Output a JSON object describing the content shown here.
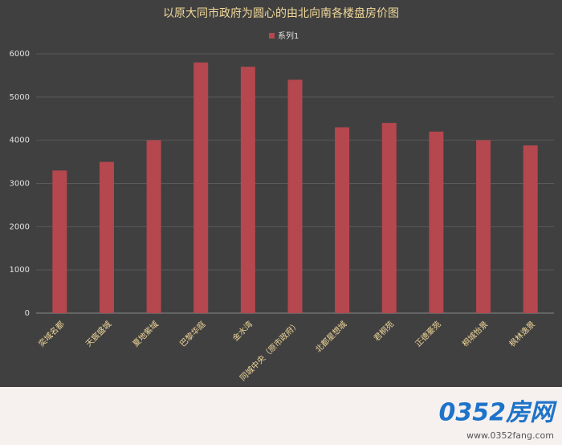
{
  "chart_data": {
    "type": "bar",
    "title": "以原大同市政府为圆心的由北向南各楼盘房价图",
    "categories": [
      "奕域名都",
      "天宸盛城",
      "夏地紫域",
      "巴黎华庭",
      "金水湾",
      "同城中央（原市政府）",
      "北都星想城",
      "君桐苑",
      "正德豪苑",
      "桐城怡景",
      "枫林逸景"
    ],
    "series": [
      {
        "name": "系列1",
        "color": "#b5474f",
        "values": [
          3300,
          3500,
          4000,
          5800,
          5700,
          5400,
          4300,
          4400,
          4200,
          4000,
          3880
        ]
      }
    ],
    "ylim": [
      0,
      6000
    ],
    "yticks": [
      0,
      1000,
      2000,
      3000,
      4000,
      5000,
      6000
    ],
    "grid": true,
    "legend": "top"
  },
  "watermark": {
    "logo": "0352房网",
    "url": "www.0352fang.com"
  }
}
